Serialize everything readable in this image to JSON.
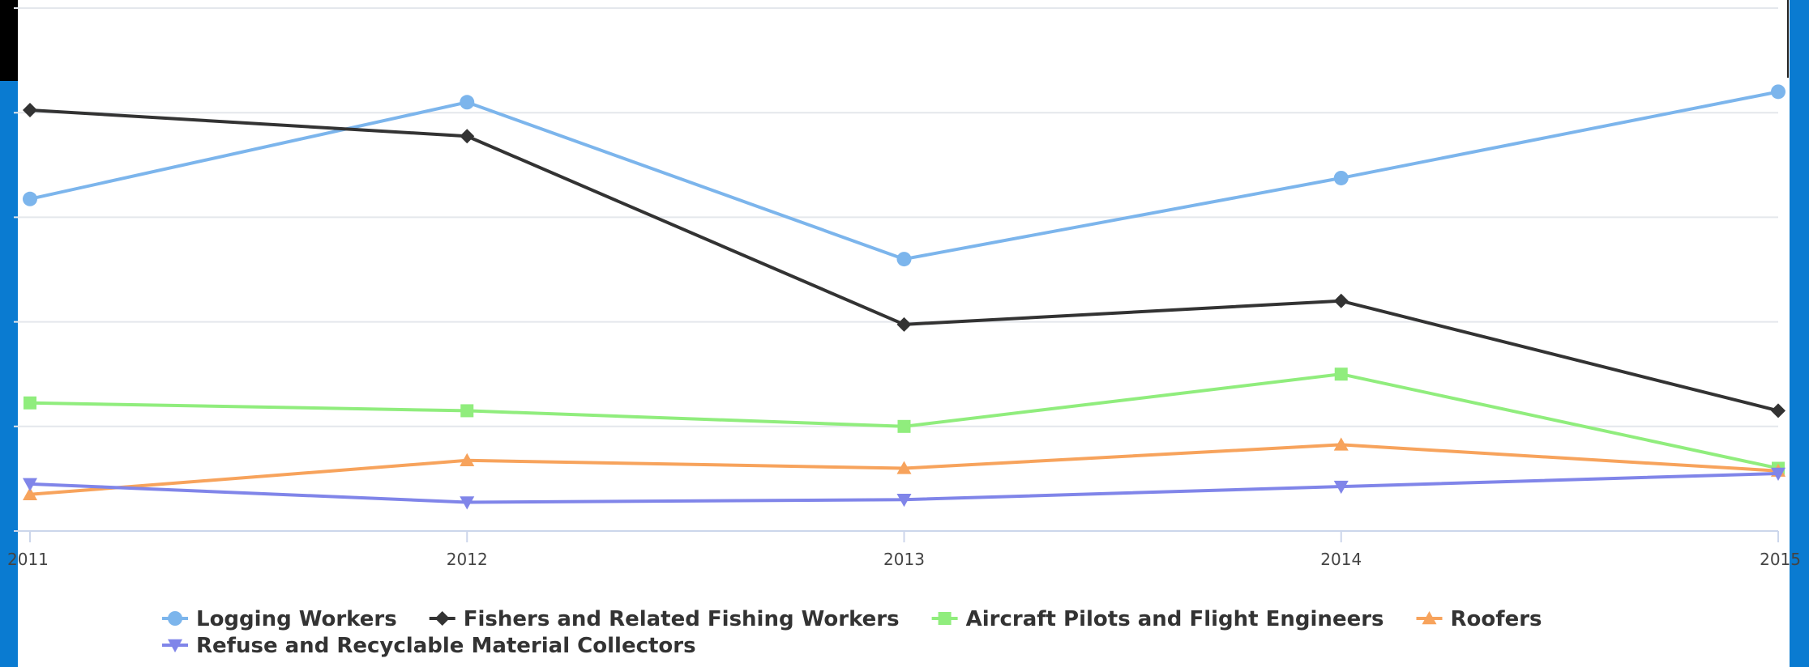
{
  "colors": {
    "page_background": "#ffffff",
    "left_accent_bar": "#0a7bd1",
    "top_left_block": "#000000",
    "grid": "#e4e7ec",
    "axis": "#ccd6eb"
  },
  "chart_data": {
    "type": "line",
    "title": "",
    "xlabel": "",
    "ylabel": "",
    "categories": [
      "2011",
      "2012",
      "2013",
      "2014",
      "2015"
    ],
    "ylim": [
      0,
      100
    ],
    "grid": true,
    "y_tick_labels_visible": false,
    "legend_position": "bottom-center",
    "series": [
      {
        "name": "Logging Workers",
        "color": "#7cb5ec",
        "marker": "circle",
        "values": [
          63.5,
          82,
          52,
          67.5,
          84
        ]
      },
      {
        "name": "Fishers and Related Fishing Workers",
        "color": "#333333",
        "marker": "diamond",
        "values": [
          80.5,
          75.5,
          39.5,
          44,
          23
        ]
      },
      {
        "name": "Aircraft Pilots and Flight Engineers",
        "color": "#90ed7d",
        "marker": "square",
        "values": [
          24.5,
          23,
          20,
          30,
          12
        ]
      },
      {
        "name": "Roofers",
        "color": "#f7a35c",
        "marker": "triangle",
        "values": [
          7,
          13.5,
          12,
          16.5,
          11.5
        ]
      },
      {
        "name": "Refuse and Recyclable Material Collectors",
        "color": "#8085e9",
        "marker": "triangle-down",
        "values": [
          9,
          5.5,
          6,
          8.5,
          11
        ]
      }
    ]
  }
}
